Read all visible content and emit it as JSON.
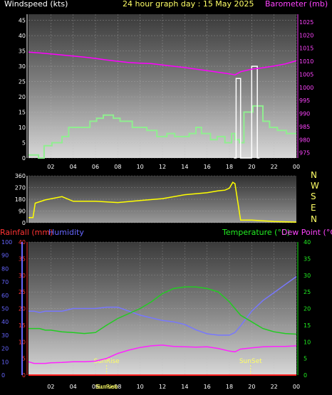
{
  "header": {
    "left_label": "Windspeed (kts)",
    "center_label": "24 hour graph day : 15 May 2025",
    "right_label": "Barometer (mb)"
  },
  "bottom_header": {
    "rain_label": "Rainfall (mm)",
    "humidity_label": "Humidity",
    "temp_label": "Temperature (°C)",
    "dew_label": "Dew Point (°C)"
  },
  "compass_labels": [
    "N",
    "W",
    "S",
    "E",
    "N"
  ],
  "colors": {
    "wind": "#90ee90",
    "gust": "#ffffff",
    "baro": "#ff00ff",
    "dir": "#ffff00",
    "temp": "#22cc22",
    "dew": "#ff22ff",
    "humidity": "#7777ff",
    "rain": "#ff2222",
    "rain_axis": "#ff3333",
    "humidity_axis": "#6666ff",
    "temp_axis": "#22ee22",
    "sun": "#ffff66"
  },
  "chart_data": [
    {
      "type": "line",
      "title": "24 hour graph day : 15 May 2025",
      "x_ticks": [
        "02",
        "04",
        "06",
        "08",
        "10",
        "12",
        "14",
        "16",
        "18",
        "20",
        "22",
        "00"
      ],
      "x": [
        0,
        1,
        2,
        3,
        4,
        5,
        6,
        7,
        8,
        9,
        10,
        11,
        12,
        13,
        14,
        15,
        16,
        17,
        18,
        19,
        20,
        21,
        22,
        23,
        24
      ],
      "y_left": {
        "label": "Windspeed (kts)",
        "ticks": [
          "0",
          "5",
          "10",
          "15",
          "20",
          "25",
          "30",
          "35",
          "40",
          "45"
        ],
        "range": [
          0,
          47
        ]
      },
      "y_right": {
        "label": "Barometer (mb)",
        "ticks": [
          "975",
          "980",
          "985",
          "990",
          "995",
          "1000",
          "1005",
          "1010",
          "1015",
          "1020",
          "1025"
        ],
        "range": [
          973,
          1028
        ]
      },
      "series": [
        {
          "name": "Windspeed",
          "axis": "left",
          "x": [
            0,
            0.9,
            0.9,
            1.4,
            1.4,
            2.1,
            2.1,
            3.0,
            3.0,
            3.6,
            3.6,
            5.5,
            5.5,
            6.1,
            6.1,
            6.7,
            6.7,
            7.6,
            7.6,
            8.2,
            8.2,
            9.3,
            9.3,
            10.6,
            10.6,
            11.5,
            11.5,
            12.4,
            12.4,
            13.1,
            13.1,
            14.4,
            14.4,
            15.0,
            15.0,
            15.5,
            15.5,
            16.3,
            16.3,
            16.9,
            16.9,
            17.6,
            17.6,
            18.2,
            18.2,
            18.5,
            18.5,
            18.9,
            18.9,
            19.3,
            19.3,
            20.1,
            20.1,
            21.0,
            21.0,
            21.6,
            21.6,
            22.3,
            22.3,
            23.1,
            23.1,
            24
          ],
          "values": [
            1,
            1,
            0,
            0,
            4,
            4,
            5,
            5,
            7,
            7,
            10,
            10,
            12,
            12,
            13,
            13,
            14,
            14,
            13,
            13,
            12,
            12,
            10,
            10,
            9,
            9,
            7,
            7,
            8,
            8,
            7,
            7,
            8,
            8,
            10,
            10,
            8,
            8,
            6,
            6,
            7,
            7,
            5,
            5,
            8,
            8,
            6,
            6,
            5,
            5,
            15,
            15,
            17,
            17,
            12,
            12,
            10,
            10,
            9,
            9,
            8,
            8
          ]
        },
        {
          "name": "Gust",
          "axis": "left",
          "x": [
            18.4,
            18.6,
            18.6,
            19.0,
            19.0,
            19.2,
            19.6,
            20.0,
            20.0,
            20.5,
            20.5,
            20.7
          ],
          "values": [
            0,
            0,
            26,
            26,
            0,
            0,
            0,
            0,
            30,
            30,
            0,
            0
          ]
        },
        {
          "name": "Barometer",
          "axis": "right",
          "x": [
            0,
            1,
            2,
            3,
            4,
            5,
            6,
            7,
            8,
            9,
            10,
            11,
            12,
            13,
            14,
            15,
            16,
            17,
            18,
            18.5,
            19,
            20,
            21,
            22,
            23,
            24
          ],
          "values": [
            1013.5,
            1013.2,
            1012.8,
            1012.4,
            1012,
            1011.6,
            1011.1,
            1010.5,
            1010,
            1009.5,
            1009.3,
            1009.1,
            1008.6,
            1008.1,
            1007.6,
            1007,
            1006.4,
            1005.8,
            1005.2,
            1004.8,
            1006,
            1007,
            1007.5,
            1008.2,
            1009,
            1010.2
          ]
        }
      ]
    },
    {
      "type": "line",
      "title": "",
      "x": [
        0,
        0.4,
        0.6,
        1.5,
        3,
        4,
        6,
        8,
        10,
        12,
        14,
        16,
        17,
        17.6,
        18,
        18.3,
        18.5,
        19,
        20,
        21,
        22,
        24
      ],
      "y_left": {
        "ticks": [
          "0",
          "90",
          "180",
          "270",
          "360"
        ],
        "range": [
          0,
          360
        ]
      },
      "y_right": {
        "ticks": [
          "N",
          "W",
          "S",
          "E",
          "N"
        ]
      },
      "series": [
        {
          "name": "Wind direction",
          "values": [
            40,
            40,
            150,
            175,
            200,
            165,
            165,
            155,
            170,
            185,
            215,
            230,
            245,
            250,
            265,
            310,
            300,
            20,
            20,
            15,
            10,
            5
          ]
        }
      ]
    },
    {
      "type": "line",
      "title": "",
      "x_ticks": [
        "02",
        "04",
        "06",
        "08",
        "10",
        "12",
        "14",
        "16",
        "18",
        "20",
        "22",
        "00"
      ],
      "x": [
        0,
        0.5,
        1,
        1.5,
        2,
        3,
        4,
        5,
        6,
        7,
        8,
        9,
        10,
        11,
        12,
        13,
        14,
        15,
        16,
        17,
        18,
        18.5,
        19,
        20,
        21,
        22,
        23,
        24
      ],
      "y_left_rain": {
        "label": "Rainfall (mm)",
        "ticks": [
          "0",
          "5",
          "10",
          "15",
          "20",
          "25",
          "30",
          "35",
          "40"
        ],
        "range": [
          0,
          40
        ]
      },
      "y_left_humidity": {
        "label": "Humidity",
        "ticks": [
          "0",
          "10",
          "20",
          "30",
          "40",
          "50",
          "60",
          "70",
          "80",
          "90",
          "100"
        ],
        "range": [
          0,
          100
        ]
      },
      "y_right": {
        "label": "Temperature (°C)",
        "ticks": [
          "0",
          "5",
          "10",
          "15",
          "20",
          "25",
          "30",
          "35",
          "40"
        ],
        "range": [
          0,
          40
        ]
      },
      "series": [
        {
          "name": "Humidity",
          "axis": "humidity",
          "values": [
            48,
            48,
            47,
            48,
            48,
            48,
            50,
            50,
            50,
            51,
            51,
            48,
            45,
            43,
            41,
            40,
            38,
            34,
            31,
            30,
            30,
            32,
            37,
            48,
            56,
            62,
            68,
            74
          ]
        },
        {
          "name": "Temperature",
          "axis": "temp",
          "values": [
            14,
            14,
            14,
            13.5,
            13.5,
            13,
            12.8,
            12.5,
            12.8,
            15,
            17,
            18.5,
            20,
            22,
            24.5,
            26,
            26.5,
            26.5,
            26,
            25,
            22,
            20,
            18,
            16,
            14,
            13,
            12.5,
            12.3
          ]
        },
        {
          "name": "Dew Point",
          "axis": "temp",
          "values": [
            4,
            3.5,
            3.5,
            3.5,
            3.7,
            3.8,
            4,
            4,
            4.2,
            5,
            6.5,
            7.5,
            8.3,
            8.8,
            9,
            8.6,
            8.5,
            8.4,
            8.5,
            8,
            7.2,
            7,
            7.8,
            8.2,
            8.5,
            8.6,
            8.6,
            8.8
          ]
        },
        {
          "name": "Rainfall",
          "axis": "rain",
          "values": [
            0,
            0,
            0,
            0,
            0,
            0,
            0,
            0,
            0,
            0,
            0,
            0,
            0,
            0,
            0,
            0,
            0,
            0,
            0,
            0,
            0,
            0,
            0,
            0,
            0,
            0,
            0,
            0
          ]
        }
      ],
      "annotations": [
        {
          "label": "SunRise",
          "x": 7.0
        },
        {
          "label": "SunSet",
          "x": 19.9
        },
        {
          "label": "SunRise",
          "x": 7.0,
          "position": "bottom"
        },
        {
          "label": "Sunset",
          "x": 7.0,
          "position": "bottom"
        }
      ]
    }
  ]
}
